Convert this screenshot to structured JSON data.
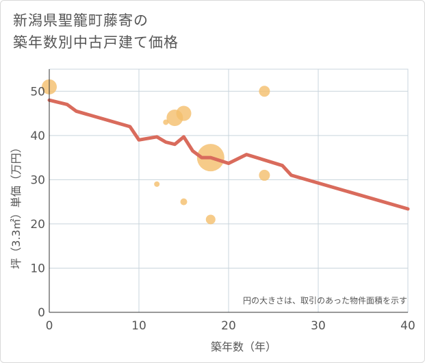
{
  "title_line1": "新潟県聖籠町藤寄の",
  "title_line2": "築年数別中古戸建て価格",
  "chart_data": {
    "type": "scatter",
    "xlabel": "築年数（年）",
    "ylabel": "坪（3.3㎡）単価（万円）",
    "xlim": [
      0,
      40
    ],
    "ylim": [
      0,
      55
    ],
    "xticks": [
      0,
      10,
      20,
      30,
      40
    ],
    "yticks": [
      0,
      10,
      20,
      30,
      40,
      50
    ],
    "grid": true,
    "annotation": "円の大きさは、取引のあった物件面積を示す",
    "point_color": "#f4be6c",
    "line_color": "#d96b5c",
    "points": [
      {
        "x": 0,
        "y": 51,
        "size": 11
      },
      {
        "x": 24,
        "y": 50,
        "size": 8
      },
      {
        "x": 15,
        "y": 45,
        "size": 11
      },
      {
        "x": 14,
        "y": 44,
        "size": 12
      },
      {
        "x": 13,
        "y": 43,
        "size": 4
      },
      {
        "x": 18,
        "y": 35,
        "size": 20
      },
      {
        "x": 24,
        "y": 31,
        "size": 8
      },
      {
        "x": 12,
        "y": 29,
        "size": 4
      },
      {
        "x": 15,
        "y": 25,
        "size": 5
      },
      {
        "x": 18,
        "y": 21,
        "size": 7
      }
    ],
    "trend": {
      "x": [
        0,
        2,
        3,
        9,
        10,
        12,
        13,
        14,
        15,
        16,
        17,
        18,
        20,
        22,
        26,
        27,
        40
      ],
      "y": [
        48,
        47,
        45.5,
        42,
        39,
        39.7,
        38.5,
        38,
        39.7,
        36.5,
        35,
        35,
        33.7,
        35.7,
        33.2,
        31,
        23.4
      ]
    }
  }
}
